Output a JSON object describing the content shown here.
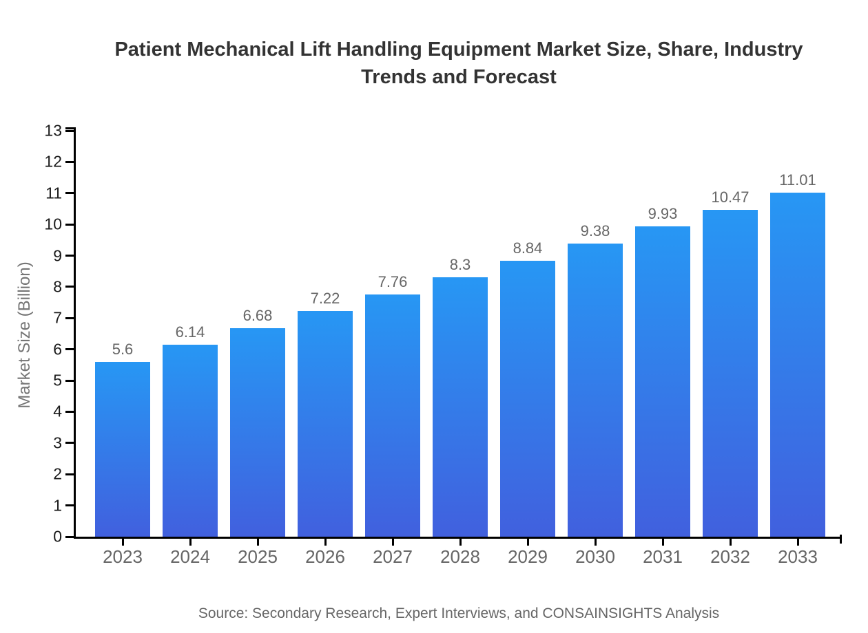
{
  "chart_data": {
    "type": "bar",
    "title": "Patient Mechanical Lift Handling Equipment Market Size, Share, Industry Trends and Forecast",
    "categories": [
      "2023",
      "2024",
      "2025",
      "2026",
      "2027",
      "2028",
      "2029",
      "2030",
      "2031",
      "2032",
      "2033"
    ],
    "values": [
      5.6,
      6.14,
      6.68,
      7.22,
      7.76,
      8.3,
      8.84,
      9.38,
      9.93,
      10.47,
      11.01
    ],
    "xlabel": "",
    "ylabel": "Market Size (Billion)",
    "ylim": [
      0,
      13
    ],
    "ytick_step": 1,
    "grid": false,
    "legend_position": "none",
    "bar_color_top": "#2797F4",
    "bar_color_bottom": "#4160DE",
    "axis_color": "#000000",
    "title_color": "#333333",
    "label_color": "#666666",
    "source": "Source: Secondary Research, Expert Interviews, and CONSAINSIGHTS Analysis"
  }
}
